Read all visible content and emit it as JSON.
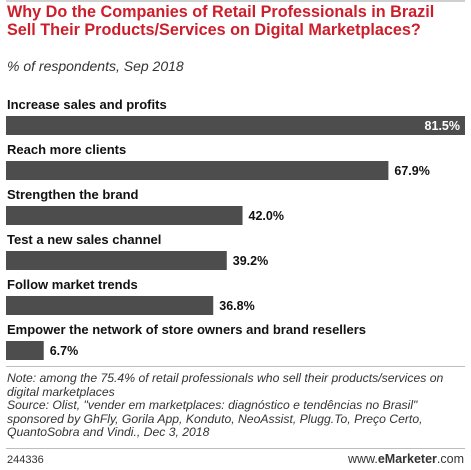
{
  "title": "Why Do the Companies of Retail Professionals in Brazil Sell Their Products/Services on Digital Marketplaces?",
  "subtitle": "% of respondents, Sep 2018",
  "note": "Note: among the 75.4% of retail professionals who sell their products/services on digital marketplaces",
  "source": "Source: Olist, \"vender em marketplaces: diagnóstico e tendências no Brasil\" sponsored by GhFly, Gorila App, Konduto, NeoAssist, Plugg.To,  Preço Certo, QuantoSobra and Vindi., Dec 3, 2018",
  "footer": {
    "chart_id": "244336",
    "brand_prefix": "www.",
    "brand_name": "eMarketer",
    "brand_suffix": ".com"
  },
  "colors": {
    "title": "#cc1e2b",
    "bar": "#4d4d4d",
    "value_inside": "#ffffff",
    "value_outside": "#111111"
  },
  "chart_data": {
    "type": "bar",
    "orientation": "horizontal",
    "title": "Why Do the Companies of Retail Professionals in Brazil Sell Their Products/Services on Digital Marketplaces?",
    "subtitle": "% of respondents, Sep 2018",
    "categories": [
      "Increase sales and profits",
      "Reach more clients",
      "Strengthen the brand",
      "Test a new sales channel",
      "Follow market trends",
      "Empower the network of store owners and brand resellers"
    ],
    "values": [
      81.5,
      67.9,
      42.0,
      39.2,
      36.8,
      6.7
    ],
    "value_labels": [
      "81.5%",
      "67.9%",
      "42.0%",
      "39.2%",
      "36.8%",
      "6.7%"
    ],
    "xlim": [
      0,
      81.5
    ],
    "grid": false,
    "legend": "none"
  }
}
